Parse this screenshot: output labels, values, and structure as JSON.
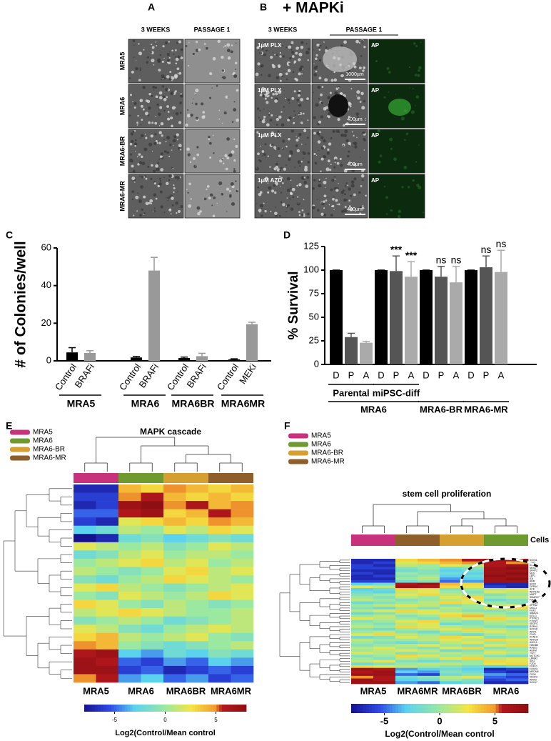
{
  "panel_a": {
    "label": "A",
    "columns": [
      "3 WEEKS",
      "PASSAGE 1"
    ],
    "rows": [
      "MRA5",
      "MRA6",
      "MRA6-BR",
      "MRA6-MR"
    ]
  },
  "panel_b": {
    "label": "B",
    "title": "+ MAPKi",
    "columns": [
      "3 WEEKS",
      "PASSAGE 1"
    ],
    "treatments": [
      "1µM PLX",
      "1µM PLX",
      "1µM PLX",
      "1µM AZD"
    ],
    "stain": "AP",
    "scale_bars": [
      "1000µm",
      "400µm",
      "400µm",
      "400µm"
    ]
  },
  "chart_data": [
    {
      "panel": "C",
      "type": "bar",
      "ylabel": "# of Colonies/well",
      "categories": [
        "Control",
        "BRAFi",
        "Control",
        "BRAFi",
        "Control",
        "BRAFi",
        "Control",
        "MEKi"
      ],
      "groups": [
        "MRA5",
        "MRA6",
        "MRA6BR",
        "MRA6MR"
      ],
      "values": [
        4.5,
        4.2,
        1.8,
        48,
        1.5,
        2.5,
        0.8,
        19.5
      ],
      "errors": [
        2.5,
        1.2,
        0.5,
        7,
        0.5,
        1.5,
        0.3,
        1
      ],
      "colors": [
        "#000000",
        "#999999",
        "#000000",
        "#999999",
        "#000000",
        "#999999",
        "#000000",
        "#999999"
      ],
      "ylim": [
        0,
        60
      ],
      "yticks": [
        0,
        20,
        40,
        60
      ]
    },
    {
      "panel": "D",
      "type": "bar",
      "ylabel": "% Survival",
      "categories": [
        "D",
        "P",
        "A",
        "D",
        "P",
        "A",
        "D",
        "P",
        "A",
        "D",
        "P",
        "A"
      ],
      "values": [
        100,
        29,
        23,
        100,
        99,
        93,
        100,
        93,
        87,
        100,
        103,
        98
      ],
      "errors": [
        0,
        4,
        1.5,
        0,
        16,
        16,
        0,
        11,
        17,
        0,
        12,
        23
      ],
      "colors": [
        "#000000",
        "#555555",
        "#aaaaaa",
        "#000000",
        "#555555",
        "#aaaaaa",
        "#000000",
        "#555555",
        "#aaaaaa",
        "#000000",
        "#555555",
        "#aaaaaa"
      ],
      "significance": [
        null,
        null,
        null,
        null,
        "***",
        "***",
        null,
        "ns",
        "ns",
        null,
        "ns",
        "ns"
      ],
      "subgroups": [
        "Parental",
        "miPSC-diff"
      ],
      "groups": [
        "MRA6",
        "MRA6-BR",
        "MRA6-MR"
      ],
      "ylim": [
        0,
        125
      ],
      "yticks": [
        0,
        25,
        50,
        75,
        100,
        125
      ]
    },
    {
      "panel": "E",
      "type": "heatmap",
      "title": "MAPK cascade",
      "legend": [
        {
          "name": "MRA5",
          "color": "#c8327c"
        },
        {
          "name": "MRA6",
          "color": "#6f9a2f"
        },
        {
          "name": "MRA6-BR",
          "color": "#d6a030"
        },
        {
          "name": "MRA6-MR",
          "color": "#8e5f2a"
        }
      ],
      "column_labels": [
        "MRA5",
        "MRA6",
        "MRA6BR",
        "MRA6MR"
      ],
      "column_colors": [
        "#c8327c",
        "#6f9a2f",
        "#d6a030",
        "#8e5f2a"
      ],
      "zlim": [
        -8,
        8
      ],
      "colorbar_ticks": [
        -5,
        0,
        5
      ],
      "colorbar_label": "Log2(Control/Mean control",
      "values": [
        [
          -7,
          -7,
          4,
          3,
          5,
          4,
          3,
          4
        ],
        [
          -6,
          -6,
          5,
          6,
          4,
          3,
          4,
          3
        ],
        [
          -7,
          -6,
          7,
          8,
          5,
          6,
          4,
          5
        ],
        [
          -5,
          -5,
          6,
          7,
          3,
          4,
          6,
          5
        ],
        [
          -6,
          -7,
          2,
          3,
          4,
          3,
          5,
          4
        ],
        [
          -3,
          -2,
          1,
          0,
          2,
          1,
          3,
          2
        ],
        [
          -8,
          -7,
          -2,
          -1,
          -3,
          -2,
          -1,
          -2
        ],
        [
          2,
          1,
          0,
          1,
          -1,
          0,
          2,
          1
        ],
        [
          -2,
          -1,
          1,
          2,
          0,
          1,
          1,
          0
        ],
        [
          0,
          1,
          2,
          3,
          1,
          2,
          0,
          1
        ],
        [
          1,
          0,
          -1,
          0,
          2,
          3,
          1,
          2
        ],
        [
          -1,
          -2,
          0,
          1,
          3,
          2,
          1,
          0
        ],
        [
          2,
          3,
          1,
          0,
          -1,
          0,
          1,
          2
        ],
        [
          0,
          -1,
          2,
          1,
          0,
          1,
          3,
          2
        ],
        [
          3,
          2,
          0,
          -1,
          1,
          0,
          -1,
          0
        ],
        [
          1,
          2,
          3,
          2,
          1,
          0,
          0,
          1
        ],
        [
          -1,
          0,
          1,
          0,
          -2,
          -1,
          0,
          1
        ],
        [
          2,
          1,
          -1,
          -2,
          0,
          1,
          2,
          1
        ],
        [
          3,
          4,
          1,
          0,
          1,
          2,
          0,
          -1
        ],
        [
          5,
          4,
          0,
          -1,
          -2,
          -1,
          0,
          1
        ],
        [
          6,
          7,
          -3,
          -4,
          -2,
          -3,
          -1,
          -2
        ],
        [
          7,
          6,
          -5,
          -6,
          -4,
          -5,
          -3,
          -4
        ],
        [
          7,
          7,
          -6,
          -5,
          -7,
          -6,
          -5,
          -6
        ],
        [
          5,
          6,
          -4,
          -3,
          -5,
          -4,
          -6,
          -5
        ]
      ]
    },
    {
      "panel": "F",
      "type": "heatmap",
      "title": "stem cell proliferation",
      "legend": [
        {
          "name": "MRA5",
          "color": "#c8327c"
        },
        {
          "name": "MRA6",
          "color": "#6f9a2f"
        },
        {
          "name": "MRA6-BR",
          "color": "#d6a030"
        },
        {
          "name": "MRA6-MR",
          "color": "#8e5f2a"
        }
      ],
      "column_labels": [
        "MRA5",
        "MRA6MR",
        "MRA6BR",
        "MRA6"
      ],
      "column_colors": [
        "#c8327c",
        "#8e5f2a",
        "#d6a030",
        "#6f9a2f"
      ],
      "row_group_label": "Cells",
      "zlim": [
        -8,
        8
      ],
      "colorbar_ticks": [
        -5,
        0,
        5
      ],
      "colorbar_label": "Log2(Control/Mean control",
      "row_labels": [
        "SOX11",
        "SMO",
        "SOX5",
        "NKX1",
        "SFRP2",
        "NES",
        "LEF1",
        "ID4",
        "AHR",
        "SOX2",
        "DPPA4",
        "ACE",
        "WNT10B",
        "MAPT",
        "SMARCD3",
        "FZD8",
        "WNT5A",
        "DPPA2",
        "DISC1",
        "FGF2",
        "SMAD3",
        "KITLG",
        "PTPRZ1",
        "CXCR1",
        "VEGFC",
        "RSPH1",
        "SOX18",
        "WNT1",
        "GVOL",
        "KCNH1",
        "WNT2A",
        "ASCL1",
        "HMGB2",
        "RAD21",
        "AGFM",
        "TCF7",
        "NOTCH1",
        "LRRH2",
        "SIX2",
        "FZD5",
        "FGF10",
        "FOXO1",
        "NRCAM",
        "CD34",
        "VEGFA",
        "WNT3",
        "SOX17"
      ],
      "values": [
        [
          -7,
          -7,
          3,
          4,
          5,
          6,
          7,
          7
        ],
        [
          -7,
          -6,
          2,
          3,
          4,
          5,
          6,
          5
        ],
        [
          -6,
          -7,
          1,
          0,
          2,
          1,
          6,
          7
        ],
        [
          -6,
          -6,
          -1,
          0,
          -2,
          -1,
          7,
          8
        ],
        [
          -7,
          -7,
          -2,
          -1,
          -3,
          -2,
          7,
          7
        ],
        [
          -6,
          -7,
          0,
          -1,
          -2,
          -3,
          7,
          8
        ],
        [
          -7,
          -6,
          -1,
          0,
          -3,
          -2,
          8,
          7
        ],
        [
          -7,
          -7,
          0,
          1,
          -4,
          -3,
          7,
          8
        ],
        [
          -6,
          -6,
          -2,
          -1,
          -5,
          -4,
          7,
          7
        ],
        [
          -3,
          -2,
          6,
          7,
          4,
          3,
          -7,
          -7
        ],
        [
          2,
          1,
          7,
          6,
          3,
          2,
          -6,
          -7
        ],
        [
          -3,
          -2,
          3,
          2,
          -1,
          0,
          1,
          2
        ],
        [
          -2,
          -3,
          1,
          2,
          0,
          -1,
          2,
          1
        ],
        [
          -1,
          0,
          2,
          3,
          1,
          0,
          -1,
          0
        ],
        [
          0,
          -1,
          1,
          0,
          2,
          3,
          0,
          1
        ],
        [
          1,
          0,
          -1,
          0,
          1,
          2,
          -2,
          -1
        ],
        [
          -2,
          -1,
          0,
          1,
          3,
          2,
          0,
          -1
        ],
        [
          0,
          1,
          2,
          1,
          -1,
          0,
          1,
          2
        ],
        [
          -1,
          -2,
          0,
          -1,
          1,
          0,
          2,
          3
        ],
        [
          1,
          2,
          3,
          2,
          0,
          -1,
          -1,
          0
        ],
        [
          -2,
          -1,
          1,
          2,
          2,
          1,
          0,
          -1
        ],
        [
          0,
          1,
          -1,
          0,
          3,
          4,
          1,
          0
        ],
        [
          2,
          1,
          0,
          -1,
          1,
          2,
          3,
          2
        ],
        [
          -1,
          0,
          2,
          3,
          0,
          -1,
          1,
          0
        ],
        [
          0,
          -1,
          1,
          2,
          -2,
          -1,
          0,
          1
        ],
        [
          1,
          0,
          3,
          2,
          1,
          0,
          -1,
          -2
        ],
        [
          -1,
          -2,
          0,
          1,
          2,
          3,
          1,
          0
        ],
        [
          0,
          1,
          -1,
          -2,
          0,
          1,
          2,
          1
        ],
        [
          2,
          3,
          1,
          0,
          -1,
          -2,
          0,
          1
        ],
        [
          -2,
          -1,
          2,
          1,
          3,
          2,
          -1,
          0
        ],
        [
          1,
          0,
          0,
          1,
          2,
          1,
          3,
          2
        ],
        [
          0,
          -1,
          -2,
          -1,
          1,
          2,
          0,
          1
        ],
        [
          -1,
          0,
          1,
          2,
          0,
          -1,
          2,
          3
        ],
        [
          1,
          2,
          0,
          -1,
          2,
          3,
          -1,
          0
        ],
        [
          0,
          1,
          2,
          1,
          -2,
          -1,
          1,
          0
        ],
        [
          2,
          1,
          -1,
          0,
          1,
          0,
          2,
          1
        ],
        [
          -1,
          0,
          3,
          2,
          0,
          1,
          -1,
          -2
        ],
        [
          0,
          -1,
          1,
          0,
          2,
          3,
          1,
          2
        ],
        [
          1,
          2,
          -1,
          -2,
          -1,
          0,
          3,
          2
        ],
        [
          -2,
          -1,
          0,
          1,
          1,
          0,
          2,
          3
        ],
        [
          3,
          2,
          1,
          0,
          -1,
          -2,
          -3,
          -2
        ],
        [
          7,
          6,
          -4,
          -3,
          -2,
          -3,
          -7,
          -6
        ],
        [
          6,
          7,
          -3,
          -4,
          -1,
          -2,
          -6,
          -7
        ],
        [
          7,
          7,
          -5,
          -6,
          -2,
          -1,
          -4,
          -5
        ],
        [
          5,
          6,
          -2,
          -1,
          1,
          2,
          -5,
          -6
        ],
        [
          7,
          6,
          -3,
          -2,
          0,
          -1,
          -6,
          -5
        ],
        [
          7,
          7,
          -4,
          -5,
          -3,
          -2,
          -7,
          -7
        ]
      ]
    }
  ]
}
